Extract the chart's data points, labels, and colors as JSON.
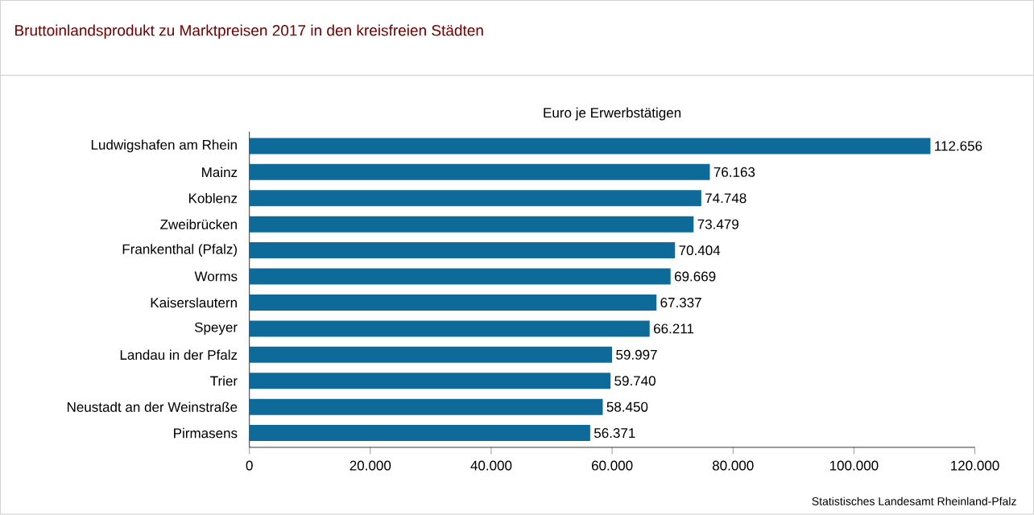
{
  "chart_data": {
    "type": "bar",
    "orientation": "horizontal",
    "title": "Bruttoinlandsprodukt zu Marktpreisen 2017 in den kreisfreien Städten",
    "subtitle": "Euro je Erwerbstätigen",
    "categories": [
      "Ludwigshafen am Rhein",
      "Mainz",
      "Koblenz",
      "Zweibrücken",
      "Frankenthal (Pfalz)",
      "Worms",
      "Kaiserslautern",
      "Speyer",
      "Landau in der Pfalz",
      "Trier",
      "Neustadt an der Weinstraße",
      "Pirmasens"
    ],
    "values": [
      112656,
      76163,
      74748,
      73479,
      70404,
      69669,
      67337,
      66211,
      59997,
      59740,
      58450,
      56371
    ],
    "value_labels": [
      "112.656",
      "76.163",
      "74.748",
      "73.479",
      "70.404",
      "69.669",
      "67.337",
      "66.211",
      "59.997",
      "59.740",
      "58.450",
      "56.371"
    ],
    "color": "#0e6b99",
    "xlim": [
      0,
      120000
    ],
    "xticks": [
      {
        "value": 0,
        "label": "0"
      },
      {
        "value": 20000,
        "label": "20.000"
      },
      {
        "value": 40000,
        "label": "40.000"
      },
      {
        "value": 60000,
        "label": "60.000"
      },
      {
        "value": 80000,
        "label": "80.000"
      },
      {
        "value": 100000,
        "label": "100.000"
      },
      {
        "value": 120000,
        "label": "120.000"
      }
    ],
    "annotations": [
      "Statistisches Landesamt Rheinland-Pfalz"
    ]
  }
}
